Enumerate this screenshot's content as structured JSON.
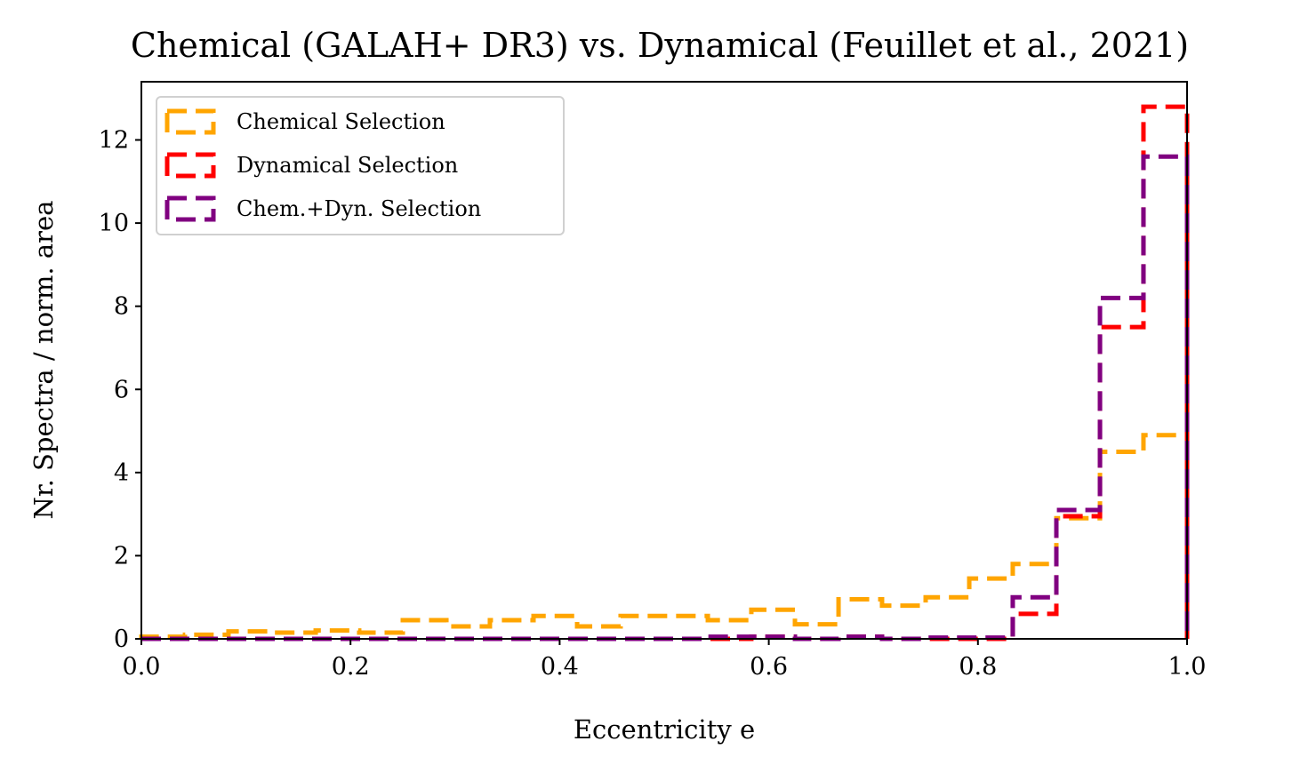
{
  "chart_data": {
    "type": "histogram-step",
    "title": "Chemical (GALAH+ DR3) vs. Dynamical (Feuillet et al., 2021)",
    "xlabel": "Eccentricity e",
    "ylabel": "Nr. Spectra / norm. area",
    "xlim": [
      0.0,
      1.0
    ],
    "ylim": [
      0,
      13.4
    ],
    "xticks": [
      "0.0",
      "0.2",
      "0.4",
      "0.6",
      "0.8",
      "1.0"
    ],
    "yticks": [
      "0",
      "2",
      "4",
      "6",
      "8",
      "10",
      "12"
    ],
    "legend_position": "top-left",
    "grid": false,
    "bin_edges": [
      0.0,
      0.0417,
      0.0833,
      0.125,
      0.1667,
      0.2083,
      0.25,
      0.2917,
      0.3333,
      0.375,
      0.4167,
      0.4583,
      0.5,
      0.5417,
      0.5833,
      0.625,
      0.6667,
      0.7083,
      0.75,
      0.7917,
      0.8333,
      0.875,
      0.9167,
      0.9583,
      1.0
    ],
    "series": [
      {
        "name": "Chemical Selection",
        "color": "#FFA500",
        "values": [
          0.05,
          0.1,
          0.18,
          0.15,
          0.2,
          0.15,
          0.45,
          0.3,
          0.45,
          0.55,
          0.3,
          0.55,
          0.55,
          0.45,
          0.7,
          0.35,
          0.95,
          0.8,
          1.0,
          1.45,
          1.8,
          2.9,
          4.5,
          4.9
        ]
      },
      {
        "name": "Dynamical Selection",
        "color": "#FF0000",
        "values": [
          0,
          0,
          0,
          0,
          0,
          0,
          0,
          0,
          0,
          0,
          0,
          0,
          0,
          0,
          0.05,
          0,
          0.05,
          0,
          0,
          0,
          0.6,
          2.95,
          7.5,
          12.8
        ]
      },
      {
        "name": "Chem.+Dyn. Selection",
        "color": "#800080",
        "values": [
          0,
          0,
          0,
          0,
          0,
          0,
          0,
          0,
          0,
          0,
          0,
          0,
          0,
          0.05,
          0.05,
          0,
          0.05,
          0,
          0.03,
          0.03,
          1.0,
          3.1,
          8.2,
          11.6
        ]
      }
    ]
  }
}
